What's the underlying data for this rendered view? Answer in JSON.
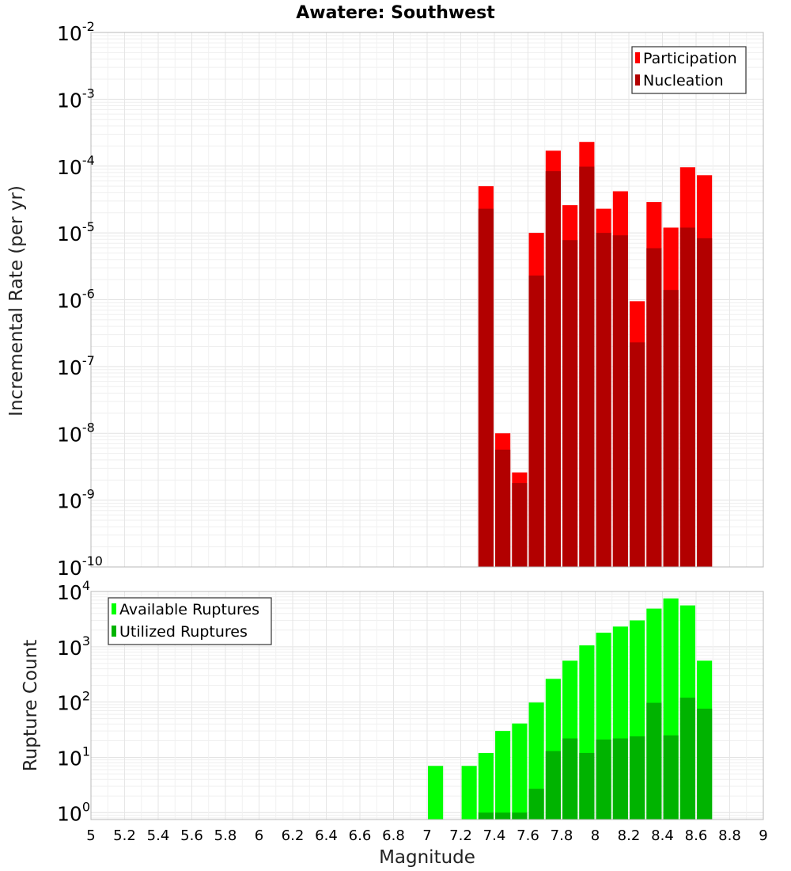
{
  "chart_data": [
    {
      "type": "bar",
      "title": "Awatere: Southwest",
      "xlabel": "",
      "ylabel": "Incremental Rate (per yr)",
      "yscale": "log",
      "ylim": [
        1e-10,
        0.01
      ],
      "xlim": [
        5,
        9
      ],
      "grid": true,
      "legend_position": "top-right",
      "y_tick_bases": [
        "10",
        "10",
        "10",
        "10",
        "10",
        "10",
        "10",
        "10",
        "10"
      ],
      "y_tick_exponents": [
        "-10",
        "-9",
        "-8",
        "-7",
        "-6",
        "-5",
        "-4",
        "-3",
        "-2"
      ],
      "x": [
        7.35,
        7.45,
        7.55,
        7.65,
        7.75,
        7.85,
        7.95,
        8.05,
        8.15,
        8.25,
        8.35,
        8.45,
        8.55,
        8.65
      ],
      "series": [
        {
          "name": "Participation",
          "color": "#ff0000",
          "values": [
            5e-05,
            1e-08,
            2.6e-09,
            1e-05,
            0.00017,
            2.6e-05,
            0.00023,
            2.3e-05,
            4.2e-05,
            9.5e-07,
            2.9e-05,
            1.2e-05,
            9.6e-05,
            7.3e-05
          ]
        },
        {
          "name": "Nucleation",
          "color": "#b20000",
          "values": [
            2.3e-05,
            5.7e-09,
            1.8e-09,
            2.3e-06,
            8.4e-05,
            7.8e-06,
            9.8e-05,
            1e-05,
            9.2e-06,
            2.3e-07,
            5.9e-06,
            1.4e-06,
            1.2e-05,
            8.3e-06
          ]
        }
      ]
    },
    {
      "type": "bar",
      "title": "",
      "xlabel": "Magnitude",
      "ylabel": "Rupture Count",
      "yscale": "log",
      "ylim": [
        0.75,
        10000
      ],
      "xlim": [
        5,
        9
      ],
      "grid": true,
      "legend_position": "top-left",
      "y_tick_bases": [
        "10",
        "10",
        "10",
        "10",
        "10"
      ],
      "y_tick_exponents": [
        "0",
        "1",
        "2",
        "3",
        "4"
      ],
      "x_tick_labels": [
        "5",
        "5.2",
        "5.4",
        "5.6",
        "5.8",
        "6",
        "6.2",
        "6.4",
        "6.6",
        "6.8",
        "7",
        "7.2",
        "7.4",
        "7.6",
        "7.8",
        "8",
        "8.2",
        "8.4",
        "8.6",
        "8.8",
        "9"
      ],
      "x": [
        7.05,
        7.25,
        7.35,
        7.45,
        7.55,
        7.65,
        7.75,
        7.85,
        7.95,
        8.05,
        8.15,
        8.25,
        8.35,
        8.45,
        8.55,
        8.65
      ],
      "series": [
        {
          "name": "Available Ruptures",
          "color": "#00ff00",
          "values": [
            7,
            7,
            12,
            30,
            41,
            98,
            263,
            560,
            1060,
            1800,
            2320,
            3000,
            4900,
            7500,
            5600,
            560
          ]
        },
        {
          "name": "Utilized Ruptures",
          "color": "#00b300",
          "values": [
            null,
            null,
            1,
            1,
            1,
            2.7,
            13,
            22,
            12,
            21,
            22,
            24,
            97,
            25,
            120,
            76
          ]
        }
      ]
    }
  ]
}
